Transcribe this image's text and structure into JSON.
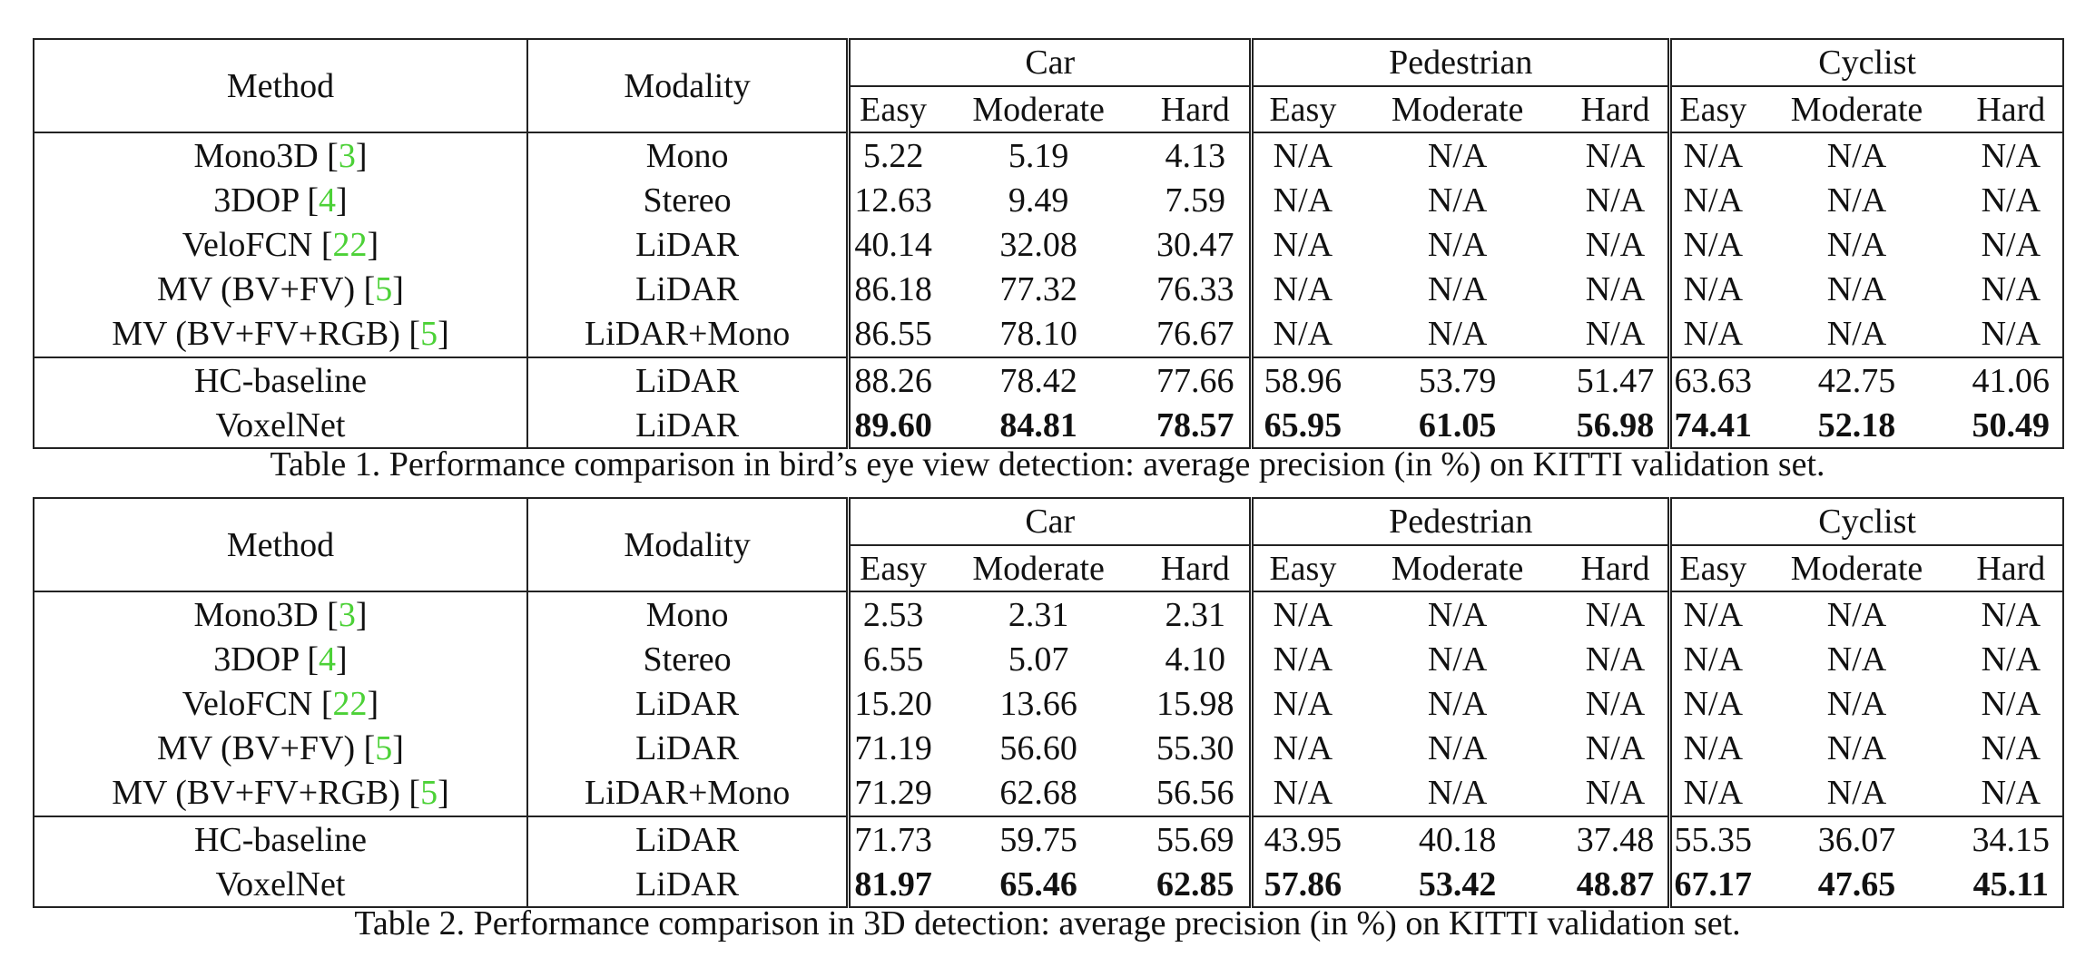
{
  "tables": [
    {
      "caption": "Table 1. Performance comparison in bird’s eye view detection: average precision (in %) on KITTI validation set.",
      "header": {
        "method": "Method",
        "modality": "Modality",
        "groups": [
          "Car",
          "Pedestrian",
          "Cyclist"
        ],
        "sub": [
          "Easy",
          "Moderate",
          "Hard"
        ]
      },
      "rows": [
        {
          "method": "Mono3D",
          "ref": "3",
          "modality": "Mono",
          "values": [
            "5.22",
            "5.19",
            "4.13",
            "N/A",
            "N/A",
            "N/A",
            "N/A",
            "N/A",
            "N/A"
          ]
        },
        {
          "method": "3DOP",
          "ref": "4",
          "modality": "Stereo",
          "values": [
            "12.63",
            "9.49",
            "7.59",
            "N/A",
            "N/A",
            "N/A",
            "N/A",
            "N/A",
            "N/A"
          ]
        },
        {
          "method": "VeloFCN",
          "ref": "22",
          "modality": "LiDAR",
          "values": [
            "40.14",
            "32.08",
            "30.47",
            "N/A",
            "N/A",
            "N/A",
            "N/A",
            "N/A",
            "N/A"
          ]
        },
        {
          "method": "MV (BV+FV)",
          "ref": "5",
          "modality": "LiDAR",
          "values": [
            "86.18",
            "77.32",
            "76.33",
            "N/A",
            "N/A",
            "N/A",
            "N/A",
            "N/A",
            "N/A"
          ]
        },
        {
          "method": "MV (BV+FV+RGB)",
          "ref": "5",
          "modality": "LiDAR+Mono",
          "values": [
            "86.55",
            "78.10",
            "76.67",
            "N/A",
            "N/A",
            "N/A",
            "N/A",
            "N/A",
            "N/A"
          ]
        },
        {
          "method": "HC-baseline",
          "modality": "LiDAR",
          "values": [
            "88.26",
            "78.42",
            "77.66",
            "58.96",
            "53.79",
            "51.47",
            "63.63",
            "42.75",
            "41.06"
          ]
        },
        {
          "method": "VoxelNet",
          "modality": "LiDAR",
          "bold": true,
          "values": [
            "89.60",
            "84.81",
            "78.57",
            "65.95",
            "61.05",
            "56.98",
            "74.41",
            "52.18",
            "50.49"
          ]
        }
      ]
    },
    {
      "caption": "Table 2. Performance comparison in 3D detection: average precision (in %) on KITTI validation set.",
      "header": {
        "method": "Method",
        "modality": "Modality",
        "groups": [
          "Car",
          "Pedestrian",
          "Cyclist"
        ],
        "sub": [
          "Easy",
          "Moderate",
          "Hard"
        ]
      },
      "rows": [
        {
          "method": "Mono3D",
          "ref": "3",
          "modality": "Mono",
          "values": [
            "2.53",
            "2.31",
            "2.31",
            "N/A",
            "N/A",
            "N/A",
            "N/A",
            "N/A",
            "N/A"
          ]
        },
        {
          "method": "3DOP",
          "ref": "4",
          "modality": "Stereo",
          "values": [
            "6.55",
            "5.07",
            "4.10",
            "N/A",
            "N/A",
            "N/A",
            "N/A",
            "N/A",
            "N/A"
          ]
        },
        {
          "method": "VeloFCN",
          "ref": "22",
          "modality": "LiDAR",
          "values": [
            "15.20",
            "13.66",
            "15.98",
            "N/A",
            "N/A",
            "N/A",
            "N/A",
            "N/A",
            "N/A"
          ]
        },
        {
          "method": "MV (BV+FV)",
          "ref": "5",
          "modality": "LiDAR",
          "values": [
            "71.19",
            "56.60",
            "55.30",
            "N/A",
            "N/A",
            "N/A",
            "N/A",
            "N/A",
            "N/A"
          ]
        },
        {
          "method": "MV (BV+FV+RGB)",
          "ref": "5",
          "modality": "LiDAR+Mono",
          "values": [
            "71.29",
            "62.68",
            "56.56",
            "N/A",
            "N/A",
            "N/A",
            "N/A",
            "N/A",
            "N/A"
          ]
        },
        {
          "method": "HC-baseline",
          "modality": "LiDAR",
          "values": [
            "71.73",
            "59.75",
            "55.69",
            "43.95",
            "40.18",
            "37.48",
            "55.35",
            "36.07",
            "34.15"
          ]
        },
        {
          "method": "VoxelNet",
          "modality": "LiDAR",
          "bold": true,
          "values": [
            "81.97",
            "65.46",
            "62.85",
            "57.86",
            "53.42",
            "48.87",
            "67.17",
            "47.65",
            "45.11"
          ]
        }
      ]
    }
  ],
  "colors": {
    "reference_link": "#4cd137",
    "text": "#111111"
  }
}
